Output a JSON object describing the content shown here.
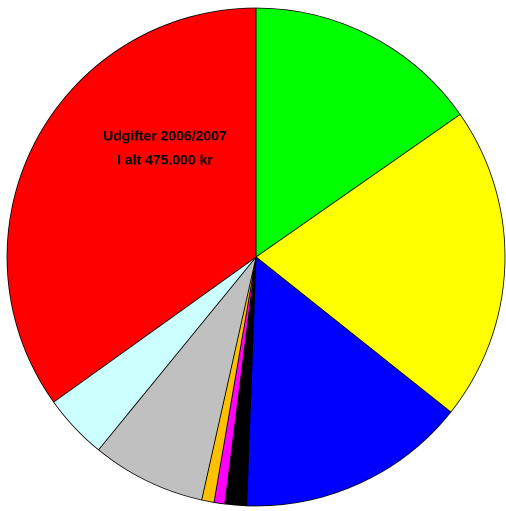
{
  "chart_data": {
    "type": "pie",
    "title": "Udgifter 2006/2007",
    "subtitle": "I alt 475.000 kr",
    "categories": [
      null,
      null,
      null,
      null,
      null,
      null,
      null,
      null,
      null
    ],
    "values": [
      15.3,
      20.4,
      14.9,
      1.4,
      0.7,
      0.8,
      7.4,
      4.2,
      34.9
    ],
    "colors": [
      "#00ff00",
      "#ffff00",
      "#0000ff",
      "#000000",
      "#ff00ff",
      "#ffc000",
      "#c0c0c0",
      "#ccffff",
      "#ff0000"
    ]
  }
}
